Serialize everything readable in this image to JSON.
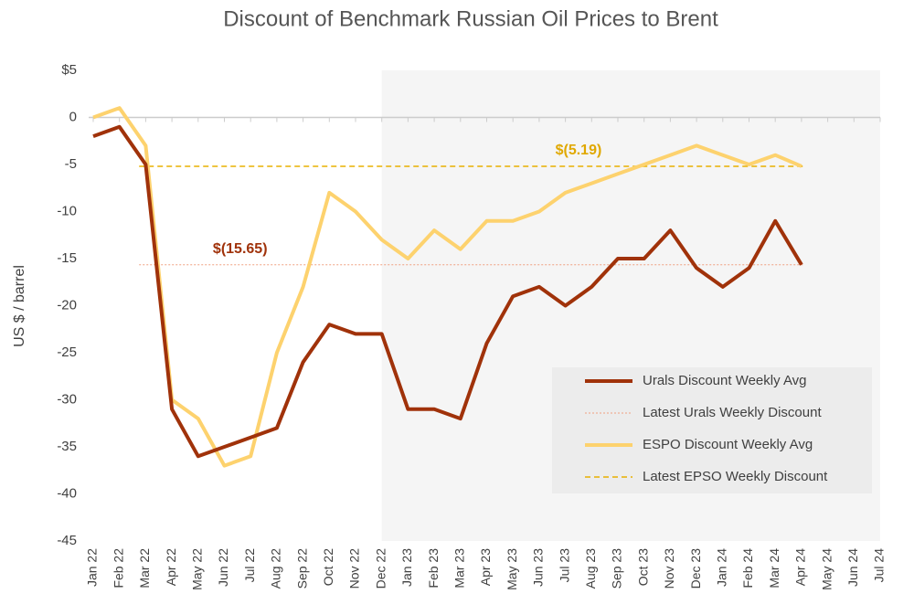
{
  "chart_data": {
    "type": "line",
    "title": "Discount of Benchmark Russian Oil Prices to Brent",
    "y_label": "US $ / barrel",
    "categories": [
      "Jan 22",
      "Feb 22",
      "Mar 22",
      "Apr 22",
      "May 22",
      "Jun 22",
      "Jul 22",
      "Aug 22",
      "Sep 22",
      "Oct 22",
      "Nov 22",
      "Dec 22",
      "Jan 23",
      "Feb 23",
      "Mar 23",
      "Apr 23",
      "May 23",
      "Jun 23",
      "Jul 23",
      "Aug 23",
      "Sep 23",
      "Oct 23",
      "Nov 23",
      "Dec 23",
      "Jan 24",
      "Feb 24",
      "Mar 24",
      "Apr 24",
      "May 24",
      "Jun 24",
      "Jul 24"
    ],
    "series": [
      {
        "name": "Urals Discount Weekly Avg",
        "color": "#a0320a",
        "values": [
          -2,
          -1,
          -5,
          -31,
          -36,
          -35,
          -34,
          -33,
          -26,
          -22,
          -23,
          -23,
          -31,
          -31,
          -32,
          -24,
          -19,
          -18,
          -20,
          -18,
          -15,
          -15,
          -12,
          -16,
          -18,
          -16,
          -11,
          -15.65,
          null,
          null,
          null
        ]
      },
      {
        "name": "ESPO Discount Weekly Avg",
        "color": "#fdd26e",
        "values": [
          0,
          1,
          -3,
          -30,
          -32,
          -37,
          -36,
          -25,
          -18,
          -8,
          -10,
          -13,
          -15,
          -12,
          -14,
          -11,
          -11,
          -10,
          -8,
          -7,
          -6,
          -5,
          -4,
          -3,
          -4,
          -5,
          -4,
          -5.19,
          null,
          null,
          null
        ]
      }
    ],
    "reference_lines": [
      {
        "name": "Latest Urals Weekly Discount",
        "value": -15.65,
        "label": "$(15.65)",
        "color": "#f0a080",
        "dash": "dotted"
      },
      {
        "name": "Latest EPSO Weekly Discount",
        "value": -5.19,
        "label": "$(5.19)",
        "color": "#e8b000",
        "dash": "dashed"
      }
    ],
    "shade_start": "Dec 22",
    "ylim": [
      -45,
      5
    ],
    "yticks": [
      {
        "value": 5,
        "label": "$5"
      },
      0,
      -5,
      -10,
      -15,
      -20,
      -25,
      -30,
      -35,
      -40,
      -45
    ],
    "grid": false,
    "legend": "lower right"
  }
}
